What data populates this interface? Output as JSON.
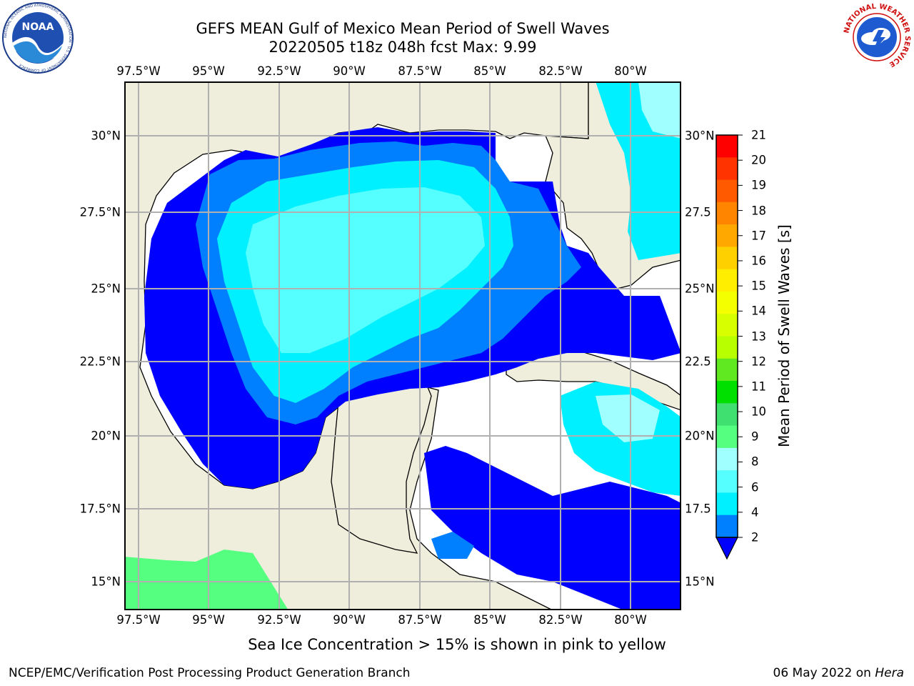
{
  "title_line1": "GEFS MEAN Gulf of Mexico Mean Period of Swell Waves",
  "title_line2": "20220505 t18z 048h fcst   Max: 9.99",
  "lon_labels": [
    "97.5°W",
    "95°W",
    "92.5°W",
    "90°W",
    "87.5°W",
    "85°W",
    "82.5°W",
    "80°W"
  ],
  "lat_labels_left": [
    "30°N",
    "27.5°N",
    "25°N",
    "22.5°N",
    "20°N",
    "17.5°N",
    "15°N"
  ],
  "lat_labels_right": [
    "30°N",
    "27.5",
    "25°N",
    "22.5",
    "20°N",
    "17.5",
    "15°N"
  ],
  "colorbar": {
    "title": "Mean Period of Swell Waves [s]",
    "ticks": [
      "21",
      "20",
      "19",
      "18",
      "17",
      "16",
      "15",
      "14",
      "13",
      "12",
      "11",
      "10",
      "9",
      "8",
      "6",
      "4",
      "2"
    ],
    "colors": [
      "#ff0000",
      "#ff3300",
      "#ff5a00",
      "#ff8400",
      "#ffa900",
      "#ffd000",
      "#ffee00",
      "#f4ff00",
      "#d8ff00",
      "#b8ff00",
      "#60e820",
      "#00e000",
      "#40e070",
      "#55ff80",
      "#a0ffff",
      "#55ffff",
      "#00f0ff",
      "#0080ff"
    ],
    "extend_color": "#0000ff"
  },
  "note": "Sea Ice Concentration > 15% is shown in pink to yellow",
  "footer_left": "NCEP/EMC/Verification Post Processing Product Generation Branch",
  "footer_date": "06 May 2022 on ",
  "footer_host": "Hera",
  "logos": {
    "noaa_text": "NOAA",
    "noaa_ring": "NATIONAL OCEANIC AND ATMOSPHERIC ADMINISTRATION · U.S. DEPARTMENT OF COMMERCE",
    "nws_ring": "NATIONAL WEATHER SERVICE"
  },
  "map_colors": {
    "land": "#efeedc",
    "central_america_land": "#55ff80",
    "swell_2_4": "#0000ff",
    "swell_4_6": "#0080ff",
    "swell_6_8": "#00f0ff",
    "swell_8_9": "#55ffff",
    "swell_9_10": "#a0ffff",
    "gridline": "#b0b0b0"
  }
}
